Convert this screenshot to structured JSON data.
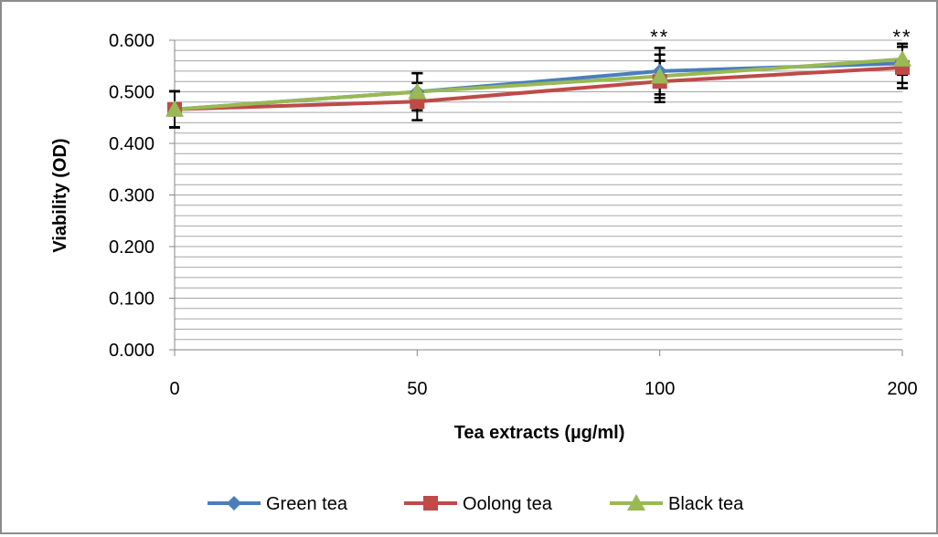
{
  "chart_data": {
    "type": "line",
    "xlabel": "Tea extracts (µg/ml)",
    "ylabel": "Viability (OD)",
    "categories": [
      "0",
      "50",
      "100",
      "200"
    ],
    "ylim": [
      0,
      0.6
    ],
    "ytick_labels": [
      "0.000",
      "0.100",
      "0.200",
      "0.300",
      "0.400",
      "0.500",
      "0.600"
    ],
    "yticks": [
      0,
      0.1,
      0.2,
      0.3,
      0.4,
      0.5,
      0.6
    ],
    "minor_grid_step": 0.02,
    "grid": true,
    "legend_position": "bottom",
    "series": [
      {
        "name": "Green tea",
        "color": "#4a7ebb",
        "marker": "diamond",
        "values": [
          0.466,
          0.5,
          0.54,
          0.555
        ],
        "errors": [
          0.035,
          0.036,
          0.045,
          0.038
        ]
      },
      {
        "name": "Oolong tea",
        "color": "#be4b48",
        "marker": "square",
        "values": [
          0.466,
          0.481,
          0.52,
          0.547
        ],
        "errors": [
          0.035,
          0.036,
          0.04,
          0.04
        ]
      },
      {
        "name": "Black tea",
        "color": "#98b954",
        "marker": "triangle",
        "values": [
          0.466,
          0.5,
          0.53,
          0.563
        ],
        "errors": [
          0.035,
          0.036,
          0.042,
          0.03
        ]
      }
    ],
    "annotations": [
      {
        "category": "100",
        "text": "**"
      },
      {
        "category": "200",
        "text": "**"
      }
    ]
  }
}
